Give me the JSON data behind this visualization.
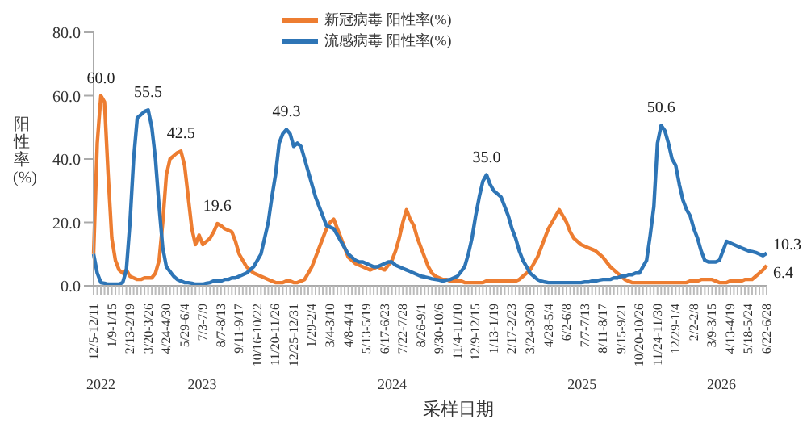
{
  "chart_data": {
    "type": "line",
    "xlabel": "采样日期",
    "ylabel": "阳性率(%)",
    "legend": "top",
    "marker": "none",
    "line_style": "solid",
    "ylim": [
      0,
      80
    ],
    "yticks": [
      {
        "value": 0,
        "label": "0.0"
      },
      {
        "value": 20,
        "label": "20.0"
      },
      {
        "value": 40,
        "label": "40.0"
      },
      {
        "value": 60,
        "label": "60.0"
      },
      {
        "value": 80,
        "label": "80.0"
      }
    ],
    "categories": [
      "12/5-12/11",
      null,
      null,
      null,
      null,
      "1/9-1/15",
      null,
      null,
      null,
      null,
      "2/13-2/19",
      null,
      null,
      null,
      null,
      "3/20-3/26",
      null,
      null,
      null,
      null,
      "4/24-4/30",
      null,
      null,
      null,
      null,
      "5/29-6/4",
      null,
      null,
      null,
      null,
      "7/3-7/9",
      null,
      null,
      null,
      null,
      "8/7-8/13",
      null,
      null,
      null,
      null,
      "9/11-9/17",
      null,
      null,
      null,
      null,
      "10/16-10/22",
      null,
      null,
      null,
      null,
      "11/20-11/26",
      null,
      null,
      null,
      null,
      "12/25-12/31",
      null,
      null,
      null,
      null,
      "1/29-2/4",
      null,
      null,
      null,
      null,
      "3/4-3/10",
      null,
      null,
      null,
      null,
      "4/8-4/14",
      null,
      null,
      null,
      null,
      "5/13-5/19",
      null,
      null,
      null,
      null,
      "6/17-6/23",
      null,
      null,
      null,
      null,
      "7/22-7/28",
      null,
      null,
      null,
      null,
      "8/26-9/1",
      null,
      null,
      null,
      null,
      "9/30-10/6",
      null,
      null,
      null,
      null,
      "11/4-11/10",
      null,
      null,
      null,
      null,
      "12/9-12/15",
      null,
      null,
      null,
      null,
      "1/13-1/19",
      null,
      null,
      null,
      null,
      "2/17-2/23",
      null,
      null,
      null,
      null,
      "3/24-3/30",
      null,
      null,
      null,
      null,
      "4/28-5/4",
      null,
      null,
      null,
      null,
      "6/2-6/8",
      null,
      null,
      null,
      null,
      "7/7-7/13",
      null,
      null,
      null,
      null,
      "8/11-8/17",
      null,
      null,
      null,
      null,
      "9/15-9/21",
      null,
      null,
      null,
      null,
      "10/20-10/26",
      null,
      null,
      null,
      null,
      "11/24-11/30",
      null,
      null,
      null,
      null,
      "12/29-1/4",
      null,
      null,
      null,
      null,
      "2/2-2/8",
      null,
      null,
      null,
      null,
      "3/9-3/15",
      null,
      null,
      null,
      null,
      "4/13-4/19",
      null,
      null,
      null,
      null,
      "5/18-5/24",
      null,
      null,
      null,
      null,
      "6/22-6/28"
    ],
    "annotations": [
      "2022",
      "2023",
      "2024",
      "2025",
      "2026"
    ],
    "series": [
      {
        "name": "新冠病毒 阳性率(%)",
        "color": "#ed7d31",
        "values": [
          10,
          45,
          60,
          58,
          35,
          15,
          8,
          5,
          4,
          5,
          3,
          2.5,
          2,
          2,
          2.5,
          2.5,
          2.5,
          4,
          8,
          20,
          35,
          40,
          41,
          42,
          42.5,
          38,
          28,
          18,
          13,
          16,
          13,
          14,
          15,
          17,
          19.6,
          19,
          18,
          17.5,
          17,
          14,
          10,
          8,
          6,
          5,
          4,
          3.5,
          3,
          2.5,
          2,
          1.5,
          1,
          1,
          1,
          1.5,
          1.5,
          1,
          1,
          1.5,
          2,
          4,
          6,
          9,
          12,
          15,
          18,
          20,
          21,
          18,
          15,
          12,
          9,
          8,
          7,
          6.5,
          6,
          5.5,
          5,
          5.5,
          6,
          5.5,
          5,
          6.5,
          8,
          11,
          15,
          20,
          24,
          21,
          19,
          15,
          12,
          9,
          6,
          4,
          3,
          2.5,
          2,
          2,
          1.5,
          1.5,
          1.5,
          1.5,
          1,
          1,
          1,
          1,
          1,
          1,
          1.5,
          1.5,
          1.5,
          1.5,
          1.5,
          1.5,
          1.5,
          1.5,
          1.5,
          2,
          3,
          4,
          5,
          7,
          9,
          12,
          15,
          18,
          20,
          22,
          24,
          22,
          20,
          17,
          15,
          14,
          13,
          12.5,
          12,
          11.5,
          11,
          10,
          9,
          7.5,
          6,
          5,
          4,
          3,
          2,
          1.5,
          1,
          1,
          1,
          1,
          1,
          1,
          1,
          1,
          1,
          1,
          1,
          1,
          1,
          1,
          1,
          1,
          1.5,
          1.5,
          1.5,
          2,
          2,
          2,
          2,
          1.5,
          1,
          1,
          1,
          1.5,
          1.5,
          1.5,
          1.5,
          2,
          2,
          2,
          3,
          4,
          5,
          6.4
        ],
        "value_labels": [
          null,
          null,
          "60.0",
          null,
          null,
          null,
          null,
          null,
          null,
          null,
          null,
          null,
          null,
          null,
          null,
          null,
          null,
          null,
          null,
          null,
          null,
          null,
          null,
          null,
          "42.5",
          null,
          null,
          null,
          null,
          null,
          null,
          null,
          null,
          null,
          "19.6",
          null,
          null,
          null,
          null,
          null,
          null,
          null,
          null,
          null,
          null,
          null,
          null,
          null,
          null,
          null,
          null,
          null,
          null,
          null,
          null,
          null,
          null,
          null,
          null,
          null,
          null,
          null,
          null,
          null,
          null,
          null,
          null,
          null,
          null,
          null,
          null,
          null,
          null,
          null,
          null,
          null,
          null,
          null,
          null,
          null,
          null,
          null,
          null,
          null,
          null,
          null,
          null,
          null,
          null,
          null,
          null,
          null,
          null,
          null,
          null,
          null,
          null,
          null,
          null,
          null,
          null,
          null,
          null,
          null,
          null,
          null,
          null,
          null,
          null,
          null,
          null,
          null,
          null,
          null,
          null,
          null,
          null,
          null,
          null,
          null,
          null,
          null,
          null,
          null,
          null,
          null,
          null,
          null,
          null,
          null,
          null,
          null,
          null,
          null,
          null,
          null,
          null,
          null,
          null,
          null,
          null,
          null,
          null,
          null,
          null,
          null,
          null,
          null,
          null,
          null,
          null,
          null,
          null,
          null,
          null,
          null,
          null,
          null,
          null,
          null,
          null,
          null,
          null,
          null,
          null,
          null,
          null,
          null,
          null,
          null,
          null,
          null,
          null,
          null,
          null,
          null,
          null,
          null,
          null,
          null,
          null,
          null,
          null,
          null,
          null,
          "6.4"
        ]
      },
      {
        "name": "流感病毒 阳性率(%)",
        "color": "#2e75b6",
        "values": [
          10,
          4,
          1,
          0.8,
          0.5,
          0.5,
          0.5,
          0.5,
          1,
          5,
          20,
          40,
          53,
          54,
          55,
          55.5,
          50,
          40,
          25,
          12,
          6,
          4.5,
          3,
          2,
          1.5,
          1,
          1,
          0.8,
          0.5,
          0.5,
          0.5,
          0.8,
          1,
          1.5,
          1.5,
          1.5,
          2,
          2,
          2.5,
          2.5,
          3,
          3.5,
          4,
          5,
          6,
          8,
          10,
          15,
          20,
          28,
          35,
          45,
          48,
          49.3,
          48,
          44,
          45,
          44,
          40,
          36,
          32,
          28,
          25,
          22,
          19,
          18.5,
          18,
          16,
          14,
          12,
          10,
          9,
          8,
          7.5,
          7.5,
          7,
          6.5,
          6,
          6,
          6.5,
          7,
          7.5,
          7.5,
          6.5,
          6,
          5.5,
          5,
          4.5,
          4,
          3.5,
          3,
          2.8,
          2.5,
          2.2,
          2,
          1.8,
          1.5,
          1.8,
          2,
          2.5,
          3,
          4.5,
          6,
          10,
          15,
          22,
          28,
          33,
          35,
          32,
          30,
          29,
          28,
          25,
          22,
          18,
          15,
          11,
          8,
          6,
          4,
          3,
          2,
          1.5,
          1.2,
          1,
          1,
          1,
          1,
          1,
          1,
          1,
          1,
          1,
          1,
          1.2,
          1.2,
          1.5,
          1.5,
          1.8,
          2,
          2,
          2,
          2.5,
          2.5,
          3,
          3,
          3.5,
          3.5,
          4,
          4,
          6,
          8,
          16,
          25,
          45,
          50.6,
          49,
          45,
          40,
          38,
          32,
          27,
          24,
          22,
          18,
          15,
          11,
          8,
          7.5,
          7.5,
          7.5,
          8,
          11,
          14,
          13.5,
          13,
          12.5,
          12,
          11.5,
          11,
          10.8,
          10.5,
          10,
          9.5,
          10.3
        ],
        "value_labels": [
          null,
          null,
          null,
          null,
          null,
          null,
          null,
          null,
          null,
          null,
          null,
          null,
          null,
          null,
          null,
          "55.5",
          null,
          null,
          null,
          null,
          null,
          null,
          null,
          null,
          null,
          null,
          null,
          null,
          null,
          null,
          null,
          null,
          null,
          null,
          null,
          null,
          null,
          null,
          null,
          null,
          null,
          null,
          null,
          null,
          null,
          null,
          null,
          null,
          null,
          null,
          null,
          null,
          null,
          "49.3",
          null,
          null,
          null,
          null,
          null,
          null,
          null,
          null,
          null,
          null,
          null,
          null,
          null,
          null,
          null,
          null,
          null,
          null,
          null,
          null,
          null,
          null,
          null,
          null,
          null,
          null,
          null,
          null,
          null,
          null,
          null,
          null,
          null,
          null,
          null,
          null,
          null,
          null,
          null,
          null,
          null,
          null,
          null,
          null,
          null,
          null,
          null,
          null,
          null,
          null,
          null,
          null,
          null,
          null,
          "35.0",
          null,
          null,
          null,
          null,
          null,
          null,
          null,
          null,
          null,
          null,
          null,
          null,
          null,
          null,
          null,
          null,
          null,
          null,
          null,
          null,
          null,
          null,
          null,
          null,
          null,
          null,
          null,
          null,
          null,
          null,
          null,
          null,
          null,
          null,
          null,
          null,
          null,
          null,
          null,
          null,
          null,
          null,
          null,
          null,
          null,
          null,
          null,
          "50.6",
          null,
          null,
          null,
          null,
          null,
          null,
          null,
          null,
          null,
          null,
          null,
          null,
          null,
          null,
          null,
          null,
          null,
          null,
          null,
          null,
          null,
          null,
          null,
          null,
          null,
          null,
          null,
          null,
          "10.3"
        ]
      }
    ]
  }
}
